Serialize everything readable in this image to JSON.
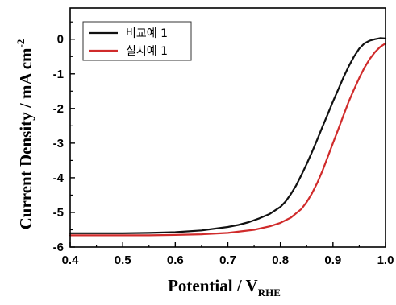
{
  "chart_data": {
    "type": "line",
    "title": "",
    "xlabel": {
      "main": "Potential / V",
      "subscript": "RHE"
    },
    "ylabel": {
      "main": "Current Density / mA cm",
      "superscript": "-2"
    },
    "xlim": [
      0.4,
      1.0
    ],
    "ylim": [
      -6,
      0.9
    ],
    "xticks": [
      0.4,
      0.5,
      0.6,
      0.7,
      0.8,
      0.9,
      1.0
    ],
    "xtick_labels": [
      "0.4",
      "0.5",
      "0.6",
      "0.7",
      "0.8",
      "0.9",
      "1.0"
    ],
    "yticks": [
      0,
      -1,
      -2,
      -3,
      -4,
      -5,
      -6
    ],
    "ytick_labels": [
      "0",
      "-1",
      "-2",
      "-3",
      "-4",
      "-5",
      "-6"
    ],
    "grid": false,
    "legend_position": "top-left",
    "series": [
      {
        "name": "비교예 1",
        "color": "#111111",
        "x": [
          0.4,
          0.45,
          0.5,
          0.55,
          0.6,
          0.65,
          0.7,
          0.72,
          0.74,
          0.76,
          0.78,
          0.8,
          0.81,
          0.82,
          0.83,
          0.84,
          0.85,
          0.86,
          0.87,
          0.88,
          0.89,
          0.9,
          0.91,
          0.92,
          0.93,
          0.94,
          0.95,
          0.96,
          0.97,
          0.98,
          0.99,
          1.0
        ],
        "y": [
          -5.6,
          -5.6,
          -5.6,
          -5.59,
          -5.57,
          -5.52,
          -5.42,
          -5.36,
          -5.28,
          -5.17,
          -5.04,
          -4.84,
          -4.68,
          -4.47,
          -4.22,
          -3.92,
          -3.6,
          -3.26,
          -2.9,
          -2.53,
          -2.17,
          -1.8,
          -1.45,
          -1.1,
          -0.78,
          -0.5,
          -0.27,
          -0.12,
          -0.04,
          0.0,
          0.03,
          0.02
        ]
      },
      {
        "name": "실시예 1",
        "color": "#d02b2b",
        "x": [
          0.4,
          0.45,
          0.5,
          0.55,
          0.6,
          0.65,
          0.7,
          0.75,
          0.78,
          0.8,
          0.82,
          0.84,
          0.85,
          0.86,
          0.87,
          0.88,
          0.89,
          0.9,
          0.91,
          0.92,
          0.93,
          0.94,
          0.95,
          0.96,
          0.97,
          0.98,
          0.99,
          1.0
        ],
        "y": [
          -5.66,
          -5.66,
          -5.66,
          -5.66,
          -5.65,
          -5.63,
          -5.59,
          -5.5,
          -5.4,
          -5.3,
          -5.15,
          -4.9,
          -4.7,
          -4.45,
          -4.15,
          -3.8,
          -3.4,
          -3.0,
          -2.6,
          -2.2,
          -1.8,
          -1.45,
          -1.12,
          -0.82,
          -0.57,
          -0.37,
          -0.22,
          -0.12
        ]
      }
    ]
  }
}
